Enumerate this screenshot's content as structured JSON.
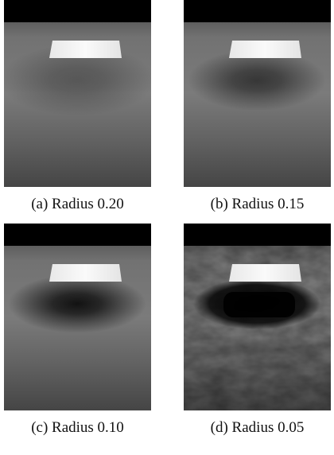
{
  "figure": {
    "panels": [
      {
        "caption": "(a) Radius 0.20"
      },
      {
        "caption": "(b) Radius 0.15"
      },
      {
        "caption": "(c) Radius 0.10"
      },
      {
        "caption": "(d) Radius 0.05"
      }
    ]
  }
}
